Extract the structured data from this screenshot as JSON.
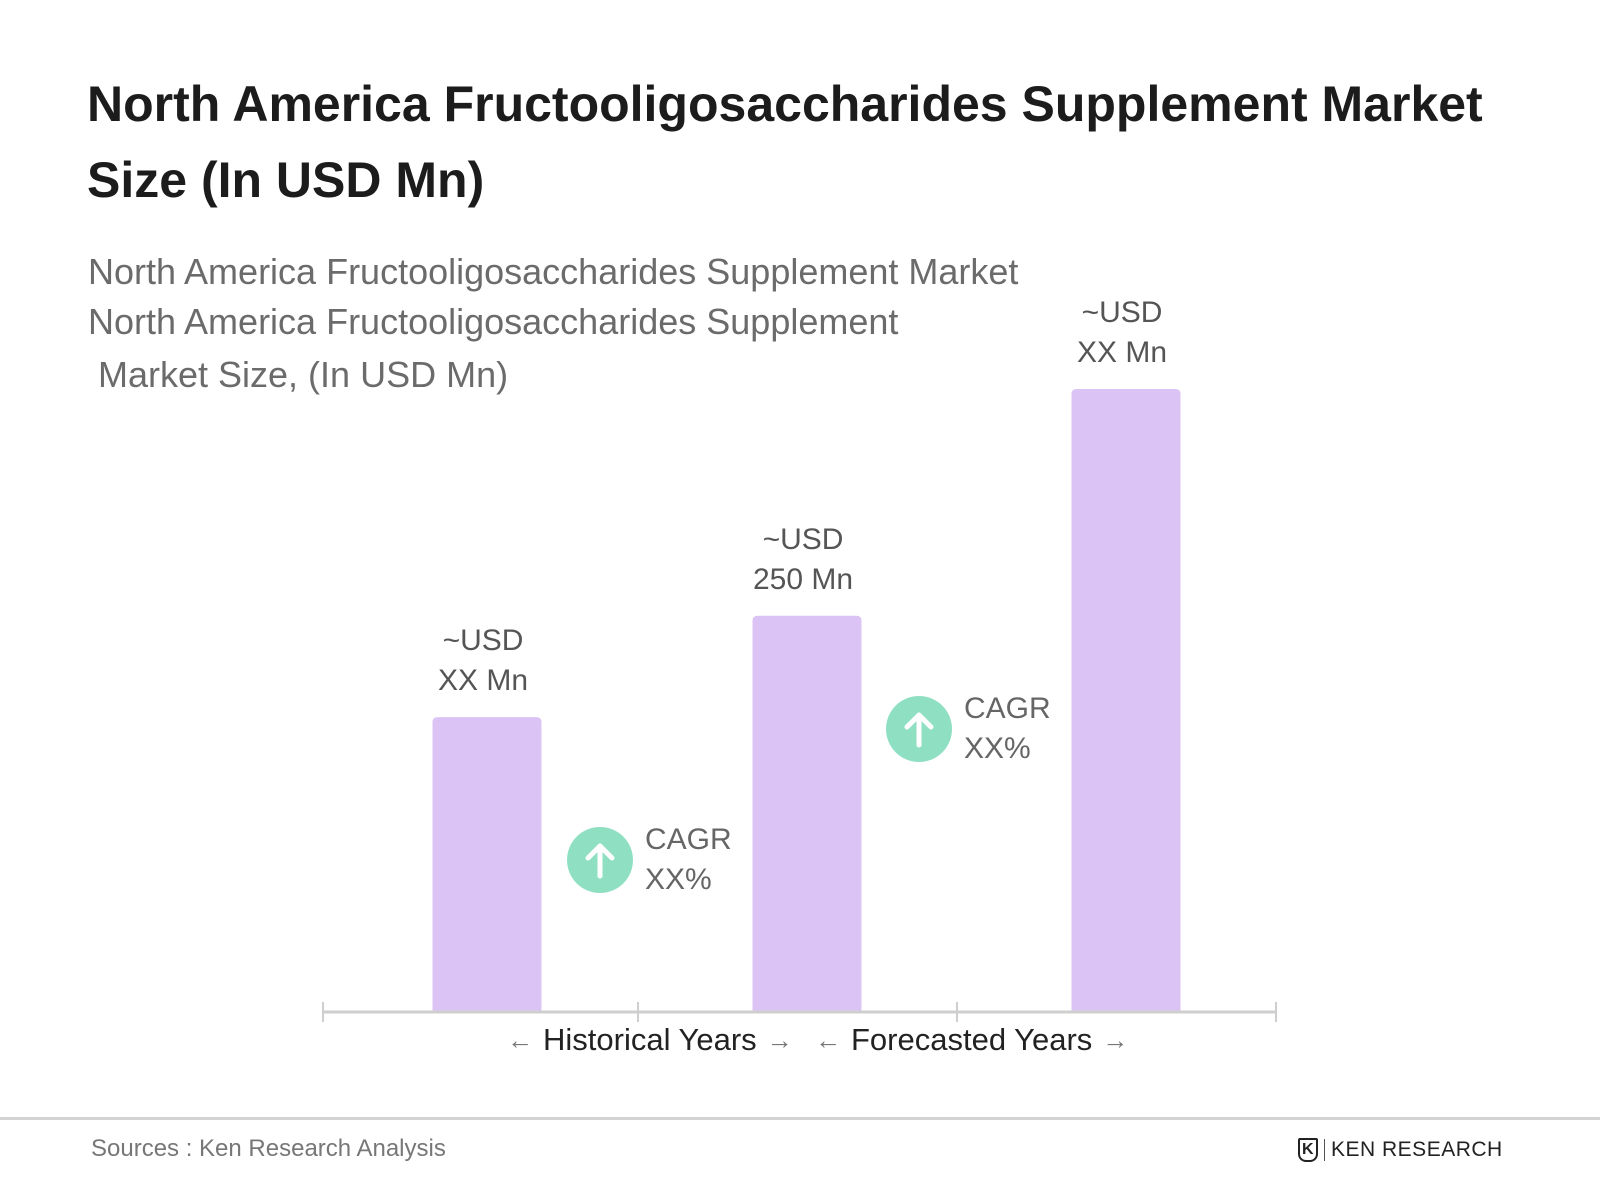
{
  "title": "North America Fructooligosaccharides Supplement Market Size (In USD Mn)",
  "subtitle_lines": [
    "North America Fructooligosaccharides Supplement Market",
    "North America Fructooligosaccharides Supplement",
    " Market Size, (In USD Mn)"
  ],
  "chart_data": {
    "type": "bar",
    "title": "North America Fructooligosaccharides Supplement Market Size (In USD Mn)",
    "categories": [
      "",
      "",
      ""
    ],
    "values": [
      186,
      250,
      393
    ],
    "data_labels": [
      [
        "~USD",
        "XX Mn"
      ],
      [
        "~USD",
        "250 Mn"
      ],
      [
        "~USD",
        "XX Mn"
      ]
    ],
    "bar_color": "#dcc3f6",
    "ylim": [
      0,
      400
    ],
    "grid": false,
    "annotations": [
      {
        "type": "cagr",
        "lines": [
          "CAGR",
          "XX%"
        ],
        "between": [
          0,
          1
        ],
        "icon": "arrow-up-circle-icon",
        "color": "#8fdfc3"
      },
      {
        "type": "cagr",
        "lines": [
          "CAGR",
          "XX%"
        ],
        "between": [
          1,
          2
        ],
        "icon": "arrow-up-circle-icon",
        "color": "#8fdfc3"
      }
    ],
    "periods": [
      "Historical Years",
      "Forecasted Years"
    ]
  },
  "footer": {
    "source": "Sources : Ken Research Analysis",
    "logo": "KEN RESEARCH"
  }
}
